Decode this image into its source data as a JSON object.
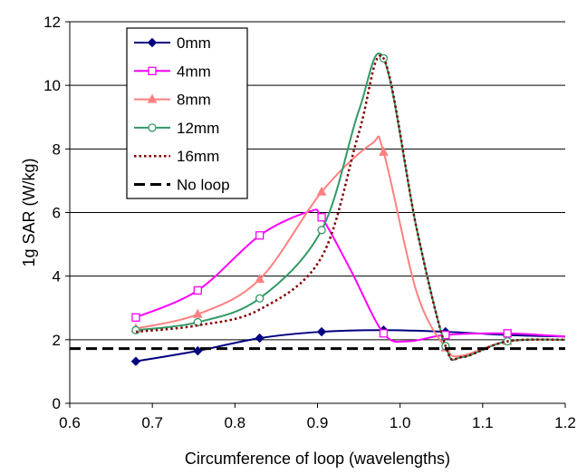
{
  "chart_data": {
    "type": "line",
    "title": "",
    "xlabel": "Circumference of loop (wavelengths)",
    "ylabel": "1g SAR (W/kg)",
    "xlim": [
      0.6,
      1.2
    ],
    "ylim": [
      0,
      12
    ],
    "xticks": [
      "0.6",
      "0.7",
      "0.8",
      "0.9",
      "1.0",
      "1.1",
      "1.2"
    ],
    "yticks": [
      "0",
      "2",
      "4",
      "6",
      "8",
      "10",
      "12"
    ],
    "grid": "horizontal",
    "legend": "top-left",
    "series": [
      {
        "name": "0mm",
        "color": "#000080",
        "marker": "diamond",
        "line": "solid",
        "x": [
          0.68,
          0.755,
          0.83,
          0.905,
          0.98,
          1.055,
          1.13,
          1.2
        ],
        "y": [
          1.32,
          1.65,
          2.05,
          2.25,
          2.3,
          2.25,
          2.15,
          2.1
        ],
        "markers_at": [
          0.68,
          0.755,
          0.83,
          0.905,
          0.98,
          1.055,
          1.13
        ]
      },
      {
        "name": "4mm",
        "color": "#ff00ff",
        "marker": "square",
        "line": "solid",
        "x": [
          0.68,
          0.755,
          0.83,
          0.89,
          0.905,
          0.94,
          0.98,
          1.01,
          1.055,
          1.13,
          1.2
        ],
        "y": [
          2.7,
          3.55,
          5.28,
          6.03,
          5.85,
          4.2,
          2.2,
          1.95,
          2.15,
          2.2,
          2.1
        ],
        "markers_at": [
          0.68,
          0.755,
          0.83,
          0.905,
          0.98,
          1.055,
          1.13
        ]
      },
      {
        "name": "8mm",
        "color": "#ff8080",
        "marker": "triangle",
        "line": "solid",
        "x": [
          0.68,
          0.755,
          0.83,
          0.905,
          0.965,
          0.98,
          1.02,
          1.055,
          1.075,
          1.13,
          1.2
        ],
        "y": [
          2.35,
          2.8,
          3.9,
          6.65,
          8.15,
          7.9,
          3.5,
          1.75,
          1.5,
          1.95,
          2.0
        ],
        "markers_at": [
          0.68,
          0.755,
          0.83,
          0.905,
          0.98,
          1.055,
          1.13
        ]
      },
      {
        "name": "12mm",
        "color": "#339966",
        "marker": "circle",
        "line": "solid",
        "x": [
          0.68,
          0.755,
          0.83,
          0.905,
          0.95,
          0.98,
          1.02,
          1.055,
          1.075,
          1.13,
          1.2
        ],
        "y": [
          2.3,
          2.55,
          3.3,
          5.45,
          9.2,
          10.85,
          5.5,
          1.8,
          1.45,
          1.95,
          2.0
        ],
        "markers_at": [
          0.68,
          0.755,
          0.83,
          0.905,
          0.98,
          1.055,
          1.13
        ]
      },
      {
        "name": "16mm",
        "color": "#800000",
        "marker": "none",
        "line": "dotted",
        "x": [
          0.68,
          0.755,
          0.83,
          0.905,
          0.95,
          0.98,
          1.02,
          1.055,
          1.075,
          1.13,
          1.2
        ],
        "y": [
          2.25,
          2.45,
          2.95,
          4.6,
          8.5,
          10.85,
          5.5,
          1.8,
          1.45,
          1.95,
          2.0
        ],
        "markers_at": []
      },
      {
        "name": "No loop",
        "color": "#000000",
        "marker": "none",
        "line": "dashed",
        "x": [
          0.6,
          1.2
        ],
        "y": [
          1.72,
          1.72
        ],
        "markers_at": []
      }
    ]
  }
}
